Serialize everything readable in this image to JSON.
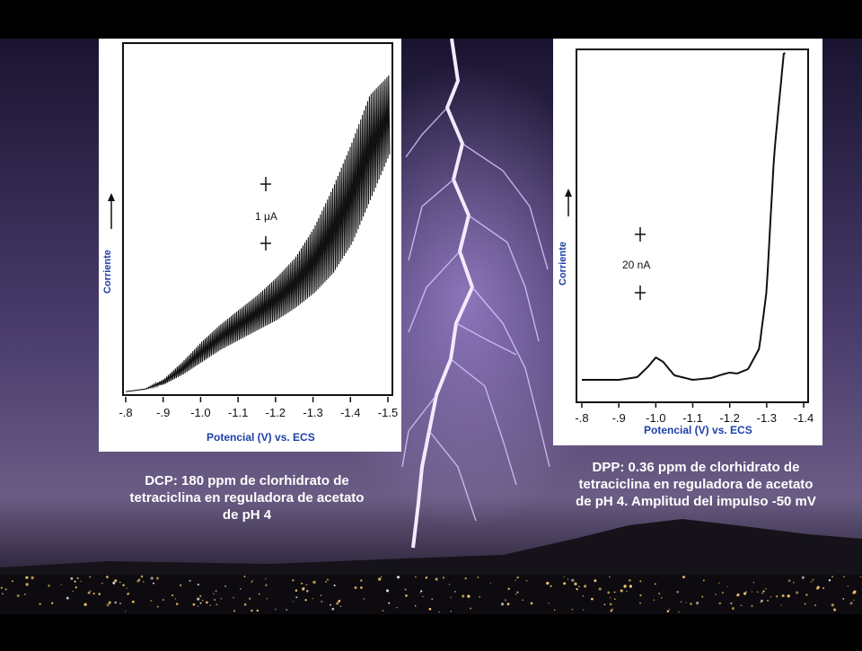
{
  "scene": {
    "colors": {
      "sky_top": "#1a1430",
      "sky_mid": "#4a3d6e",
      "horizon": "#6a5c84",
      "lightning": "#f4eaff",
      "city_lights": "#ffcf6a",
      "label_blue": "#1f3fa8"
    }
  },
  "dcp": {
    "ylabel": "Corriente",
    "xlabel": "Potencial (V)  vs. ECS",
    "scale_label": "1 μA",
    "caption": "DCP: 180 ppm de clorhidrato de tetraciclina en reguladora de acetato de pH 4"
  },
  "dpp": {
    "ylabel": "Corriente",
    "xlabel": "Potencial (V)  vs. ECS",
    "scale_label": "20 nA",
    "caption": "DPP: 0.36 ppm de clorhidrato de tetraciclina en reguladora de acetato de pH 4. Amplitud del impulso   -50 mV"
  },
  "chart_data": [
    {
      "type": "line",
      "title": "DCP: 180 ppm de clorhidrato de tetraciclina en reguladora de acetato de pH 4",
      "xlabel": "Potencial (V)  vs. ECS",
      "ylabel": "Corriente",
      "tick_labels": [
        "-.8",
        "-.9",
        "-1.0",
        "-1.1",
        "-1.2",
        "-1.3",
        "-1.4",
        "-1.5"
      ],
      "xlim": [
        -0.8,
        -1.5
      ],
      "scale_bar": "1 μA",
      "series": [
        {
          "name": "",
          "x": [
            -0.8,
            -0.85,
            -0.9,
            -0.95,
            -1.0,
            -1.05,
            -1.1,
            -1.15,
            -1.2,
            -1.25,
            -1.3,
            -1.35,
            -1.4,
            -1.45,
            -1.5
          ],
          "y_low": [
            0.0,
            0.05,
            0.15,
            0.35,
            0.6,
            0.85,
            1.05,
            1.25,
            1.45,
            1.7,
            2.0,
            2.4,
            3.0,
            3.9,
            4.8
          ],
          "y_high": [
            0.0,
            0.05,
            0.25,
            0.6,
            1.0,
            1.35,
            1.65,
            1.95,
            2.3,
            2.7,
            3.3,
            4.1,
            5.0,
            6.0,
            6.4
          ]
        }
      ]
    },
    {
      "type": "line",
      "title": "DPP: 0.36 ppm de clorhidrato de tetraciclina en reguladora de acetato de pH 4. Amplitud del impulso   -50 mV",
      "xlabel": "Potencial (V)  vs. ECS",
      "ylabel": "Corriente",
      "tick_labels": [
        "-.8",
        "-.9",
        "-1.0",
        "-1.1",
        "-1.2",
        "-1.3",
        "-1.4"
      ],
      "xlim": [
        -0.8,
        -1.4
      ],
      "scale_bar": "20 nA",
      "series": [
        {
          "name": "",
          "x": [
            -0.8,
            -0.85,
            -0.9,
            -0.95,
            -0.98,
            -1.0,
            -1.02,
            -1.05,
            -1.1,
            -1.15,
            -1.18,
            -1.2,
            -1.22,
            -1.25,
            -1.28,
            -1.3,
            -1.32,
            -1.35
          ],
          "y": [
            0.0,
            0.0,
            0.0,
            0.03,
            0.15,
            0.25,
            0.2,
            0.05,
            0.0,
            0.02,
            0.06,
            0.08,
            0.07,
            0.12,
            0.35,
            1.0,
            2.5,
            3.8
          ]
        }
      ]
    }
  ]
}
